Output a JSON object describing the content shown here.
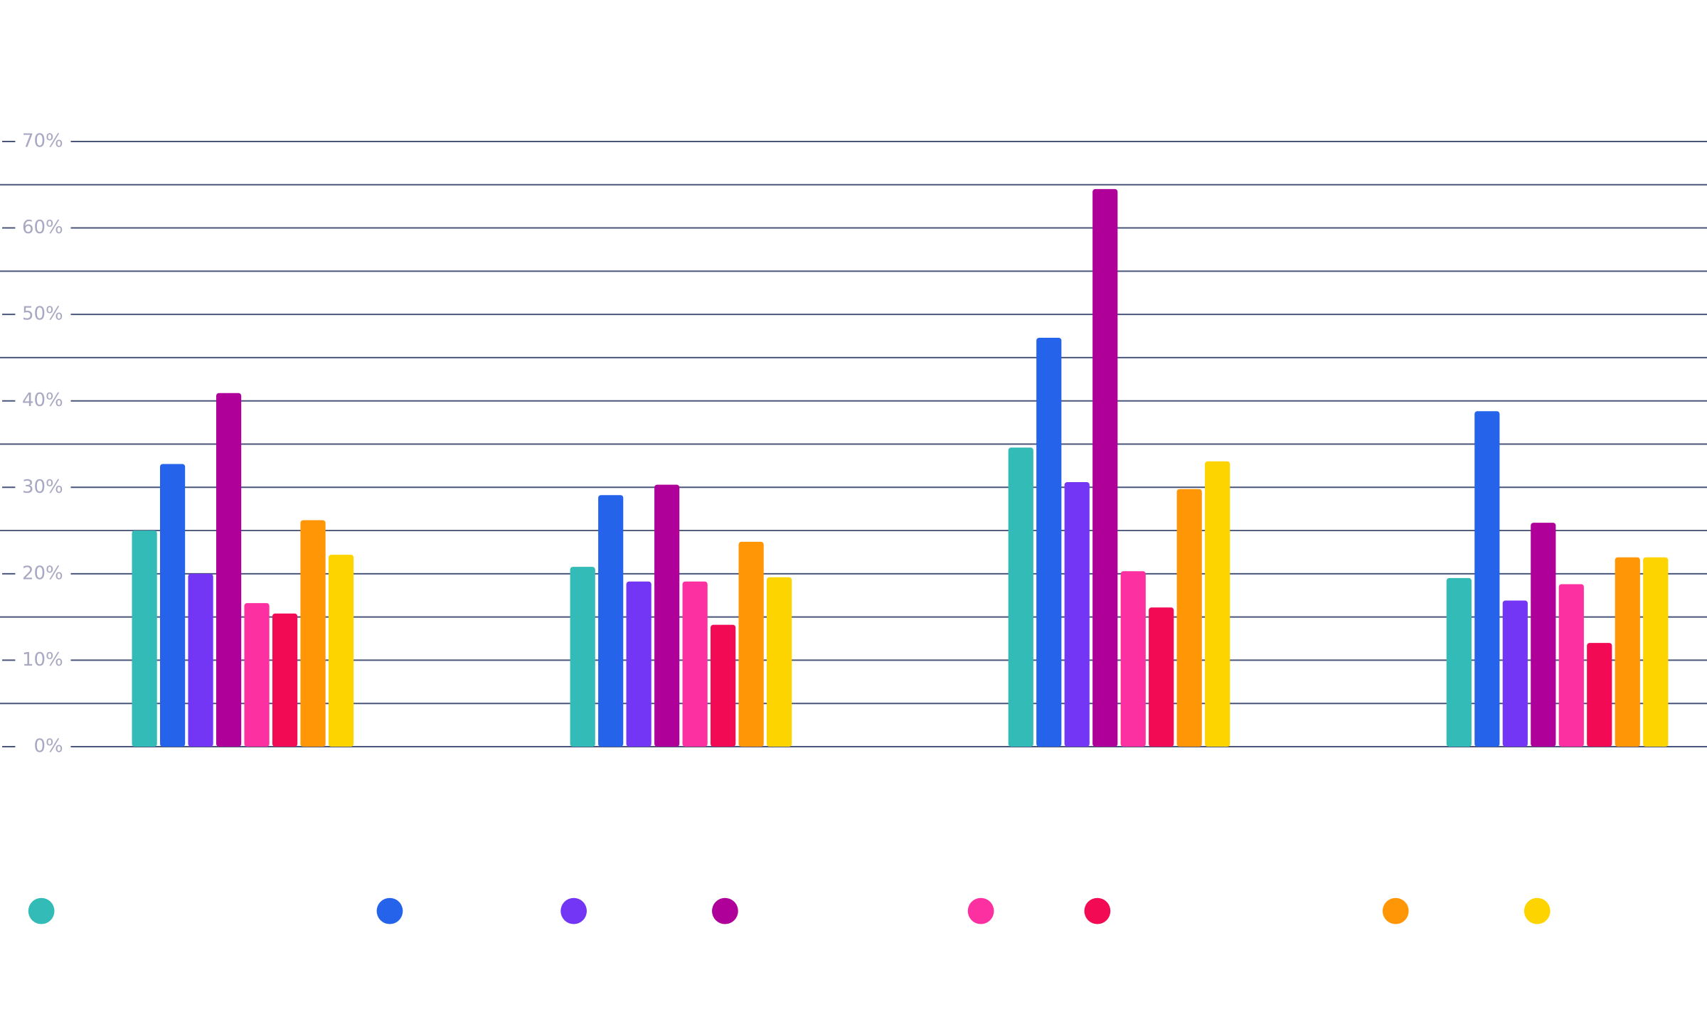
{
  "chart_data": {
    "type": "bar",
    "categories": [
      null,
      null,
      null,
      null
    ],
    "series": [
      {
        "color": "#33bbb8",
        "values": [
          25.0,
          20.8,
          34.6,
          19.5
        ]
      },
      {
        "color": "#2563eb",
        "values": [
          32.7,
          29.1,
          47.3,
          38.8
        ]
      },
      {
        "color": "#7436f5",
        "values": [
          20.0,
          19.1,
          30.6,
          16.9
        ]
      },
      {
        "color": "#b0009a",
        "values": [
          40.9,
          30.3,
          64.5,
          25.9
        ]
      },
      {
        "color": "#fc30a0",
        "values": [
          16.6,
          19.1,
          20.3,
          18.8
        ]
      },
      {
        "color": "#f20a55",
        "values": [
          15.4,
          14.1,
          16.1,
          12.0
        ]
      },
      {
        "color": "#ff9606",
        "values": [
          26.2,
          23.7,
          29.8,
          21.9
        ]
      },
      {
        "color": "#fdd400",
        "values": [
          22.2,
          19.6,
          33.0,
          21.9
        ]
      }
    ],
    "ylim": [
      0,
      70
    ],
    "yticks": [
      {
        "value": 0,
        "label": "0%"
      },
      {
        "value": 10,
        "label": "10%"
      },
      {
        "value": 20,
        "label": "20%"
      },
      {
        "value": 30,
        "label": "30%"
      },
      {
        "value": 40,
        "label": "40%"
      },
      {
        "value": 50,
        "label": "50%"
      },
      {
        "value": 60,
        "label": "60%"
      },
      {
        "value": 70,
        "label": "70%"
      }
    ],
    "ygrid_minor": [
      5,
      15,
      25,
      35,
      45,
      55,
      65
    ],
    "grid": true
  }
}
